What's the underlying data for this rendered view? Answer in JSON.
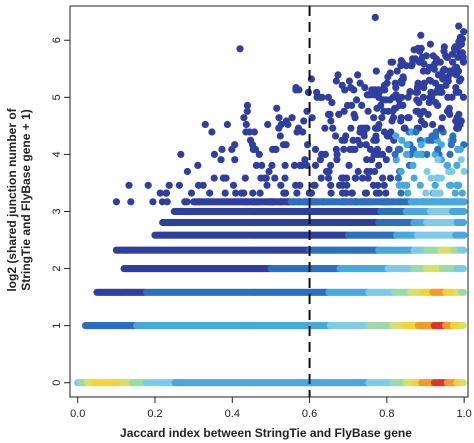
{
  "chart_data": {
    "type": "scatter",
    "title": "",
    "xlabel": "Jaccard index between StringTie and FlyBase gene",
    "ylabel_lines": [
      "log2 (shared junction number of",
      "StringTie and FlyBase gene + 1)"
    ],
    "xlim": [
      -0.02,
      1.01
    ],
    "ylim": [
      -0.25,
      6.6
    ],
    "x_ticks": [
      "0.0",
      "0.2",
      "0.4",
      "0.6",
      "0.8",
      "1.0"
    ],
    "x_tick_values": [
      0.0,
      0.2,
      0.4,
      0.6,
      0.8,
      1.0
    ],
    "y_ticks": [
      "0",
      "1",
      "2",
      "3",
      "4",
      "5",
      "6"
    ],
    "y_tick_values": [
      0,
      1,
      2,
      3,
      4,
      5,
      6
    ],
    "vline": {
      "x": 0.6,
      "style": "dashed",
      "color": "#111111"
    },
    "color_scale": [
      "#2f3fa0",
      "#2a6fc0",
      "#46a8dc",
      "#7fcbe6",
      "#9ed9a8",
      "#d6e06a",
      "#f4d23a",
      "#f39a2c",
      "#d8382a"
    ],
    "bands": [
      {
        "y": 0.0,
        "x_start": 0.0,
        "x_end": 1.0,
        "density": [
          [
            0.0,
            3
          ],
          [
            0.03,
            5
          ],
          [
            0.06,
            6
          ],
          [
            0.1,
            6
          ],
          [
            0.15,
            4
          ],
          [
            0.2,
            3
          ],
          [
            0.3,
            2
          ],
          [
            0.4,
            2
          ],
          [
            0.5,
            2
          ],
          [
            0.6,
            2
          ],
          [
            0.7,
            2
          ],
          [
            0.8,
            3
          ],
          [
            0.86,
            5
          ],
          [
            0.9,
            7
          ],
          [
            0.94,
            8
          ],
          [
            0.97,
            7
          ],
          [
            1.0,
            5
          ]
        ]
      },
      {
        "y": 1.0,
        "x_start": 0.02,
        "x_end": 1.0,
        "density": [
          [
            0.02,
            1
          ],
          [
            0.1,
            1
          ],
          [
            0.2,
            2
          ],
          [
            0.3,
            2
          ],
          [
            0.45,
            2
          ],
          [
            0.6,
            2
          ],
          [
            0.7,
            3
          ],
          [
            0.8,
            4
          ],
          [
            0.86,
            6
          ],
          [
            0.9,
            7
          ],
          [
            0.94,
            8
          ],
          [
            0.98,
            6
          ],
          [
            1.0,
            5
          ]
        ]
      },
      {
        "y": 1.585,
        "x_start": 0.05,
        "x_end": 1.0,
        "density": [
          [
            0.05,
            0
          ],
          [
            0.3,
            1
          ],
          [
            0.6,
            1
          ],
          [
            0.7,
            2
          ],
          [
            0.8,
            3
          ],
          [
            0.88,
            5
          ],
          [
            0.93,
            7
          ],
          [
            0.97,
            6
          ],
          [
            1.0,
            4
          ]
        ]
      },
      {
        "y": 2.0,
        "x_start": 0.12,
        "x_end": 1.0,
        "density": [
          [
            0.12,
            0
          ],
          [
            0.4,
            0
          ],
          [
            0.6,
            1
          ],
          [
            0.75,
            2
          ],
          [
            0.85,
            3
          ],
          [
            0.92,
            5
          ],
          [
            0.96,
            4
          ],
          [
            1.0,
            3
          ]
        ]
      },
      {
        "y": 2.322,
        "x_start": 0.1,
        "x_end": 1.0,
        "density": [
          [
            0.1,
            0
          ],
          [
            0.5,
            0
          ],
          [
            0.7,
            1
          ],
          [
            0.85,
            2
          ],
          [
            0.92,
            4
          ],
          [
            0.96,
            5
          ],
          [
            1.0,
            3
          ]
        ]
      },
      {
        "y": 2.585,
        "x_start": 0.2,
        "x_end": 1.0,
        "density": [
          [
            0.2,
            0
          ],
          [
            0.6,
            0
          ],
          [
            0.8,
            1
          ],
          [
            0.9,
            3
          ],
          [
            0.95,
            3
          ],
          [
            1.0,
            2
          ]
        ]
      },
      {
        "y": 2.807,
        "x_start": 0.22,
        "x_end": 1.0,
        "density": [
          [
            0.22,
            0
          ],
          [
            0.7,
            0
          ],
          [
            0.85,
            1
          ],
          [
            0.92,
            3
          ],
          [
            0.96,
            3
          ],
          [
            1.0,
            2
          ]
        ]
      },
      {
        "y": 3.0,
        "x_start": 0.25,
        "x_end": 1.0,
        "density": [
          [
            0.25,
            0
          ],
          [
            0.75,
            0
          ],
          [
            0.88,
            2
          ],
          [
            0.94,
            3
          ],
          [
            1.0,
            2
          ]
        ]
      },
      {
        "y": 3.17,
        "x_start": 0.3,
        "x_end": 1.0,
        "density": [
          [
            0.3,
            0
          ],
          [
            0.8,
            1
          ],
          [
            0.92,
            2
          ],
          [
            1.0,
            2
          ]
        ]
      }
    ]
  }
}
